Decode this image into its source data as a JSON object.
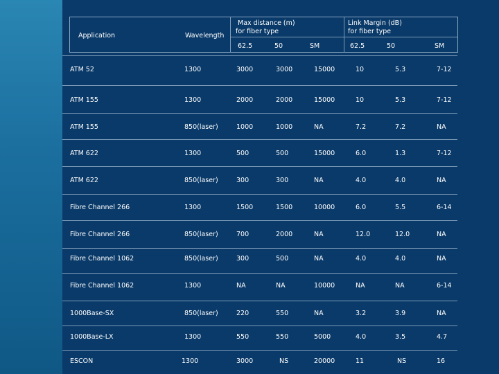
{
  "header": {
    "application": "Application",
    "wavelength": "Wavelength",
    "max_distance": [
      "Max distance (m)",
      "for fiber type"
    ],
    "link_margin": [
      "Link Margin (dB)",
      "for fiber type"
    ],
    "sub": [
      "62.5",
      "50",
      "SM",
      "62.5",
      "50",
      "SM"
    ]
  },
  "rows": [
    [
      "ATM 52",
      "1300",
      "3000",
      "3000",
      "15000",
      "10",
      "5.3",
      "7-12"
    ],
    [
      "ATM 155",
      "1300",
      "2000",
      "2000",
      "15000",
      "10",
      "5.3",
      "7-12"
    ],
    [
      "ATM 155",
      "850(laser)",
      "1000",
      "1000",
      "NA",
      "7.2",
      "7.2",
      "NA"
    ],
    [
      "ATM 622",
      "1300",
      "500",
      "500",
      "15000",
      "6.0",
      "1.3",
      "7-12"
    ],
    [
      "ATM 622",
      "850(laser)",
      "300",
      "300",
      "NA",
      "4.0",
      "4.0",
      "NA"
    ],
    [
      "Fibre Channel 266",
      "1300",
      "1500",
      "1500",
      "10000",
      "6.0",
      "5.5",
      "6-14"
    ],
    [
      "Fibre Channel 266",
      "850(laser)",
      "700",
      "2000",
      "NA",
      "12.0",
      "12.0",
      "NA"
    ],
    [
      "Fibre Channel 1062",
      "850(laser)",
      "300",
      "500",
      "NA",
      "4.0",
      "4.0",
      "NA"
    ],
    [
      "Fibre Channel 1062",
      "1300",
      "NA",
      "NA",
      "10000",
      "NA",
      "NA",
      "6-14"
    ],
    [
      "1000Base-SX",
      "850(laser)",
      "220",
      "550",
      "NA",
      "3.2",
      "3.9",
      "NA"
    ],
    [
      "1000Base-LX",
      "1300",
      "550",
      "550",
      "5000",
      "4.0",
      "3.5",
      "4.7"
    ],
    [
      "ESCON",
      "1300",
      "3000",
      "NS",
      "20000",
      "11",
      "NS",
      "16"
    ]
  ]
}
